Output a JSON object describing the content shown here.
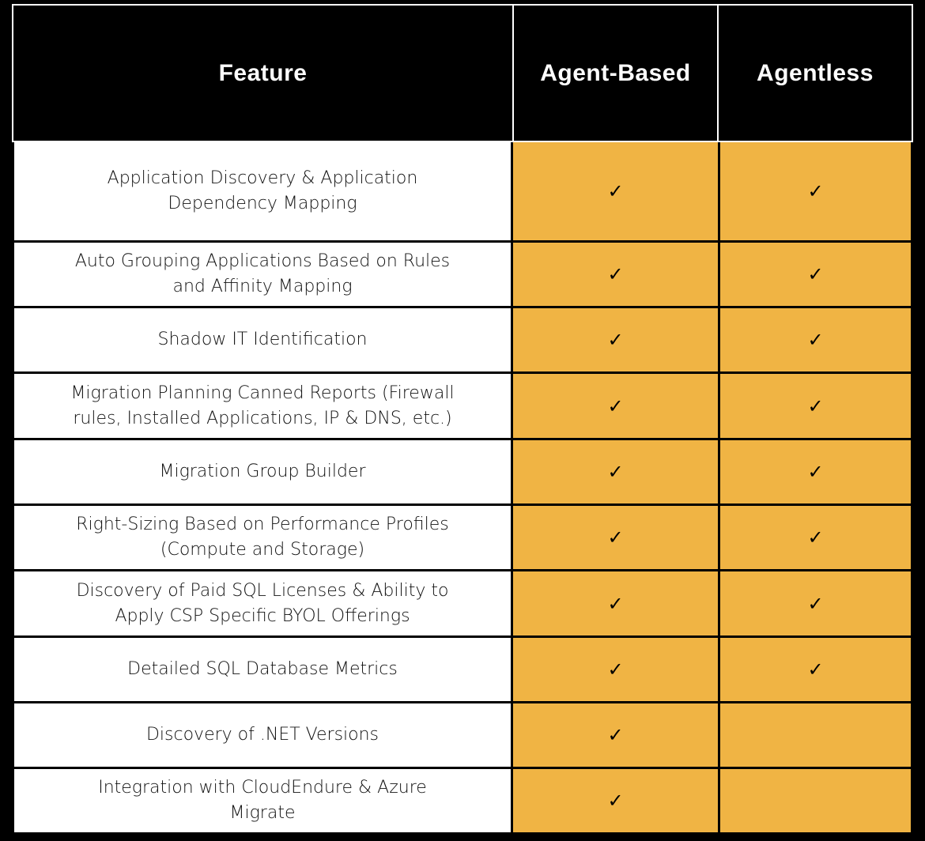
{
  "colors": {
    "accent": "#F0B444",
    "header_bg": "#000000",
    "feature_bg": "#FFFFFF"
  },
  "headers": [
    "Feature",
    "Agent-Based",
    "Agentless"
  ],
  "check_symbol": "✓",
  "rows": [
    {
      "feature": "Application Discovery & Application\nDependency Mapping",
      "agent_based": "✓",
      "agentless": "✓"
    },
    {
      "feature": "Auto Grouping Applications Based on Rules\nand Affinity Mapping",
      "agent_based": "✓",
      "agentless": "✓"
    },
    {
      "feature": "Shadow IT Identification",
      "agent_based": "✓",
      "agentless": "✓"
    },
    {
      "feature": "Migration Planning Canned Reports (Firewall\nrules, Installed Applications, IP & DNS, etc.)",
      "agent_based": "✓",
      "agentless": "✓"
    },
    {
      "feature": "Migration Group Builder",
      "agent_based": "✓",
      "agentless": "✓"
    },
    {
      "feature": "Right-Sizing Based on Performance Profiles\n(Compute and Storage)",
      "agent_based": "✓",
      "agentless": "✓"
    },
    {
      "feature": "Discovery of Paid SQL Licenses & Ability to\nApply CSP Specific BYOL Offerings",
      "agent_based": "✓",
      "agentless": "✓"
    },
    {
      "feature": "Detailed SQL Database Metrics",
      "agent_based": "✓",
      "agentless": "✓"
    },
    {
      "feature": "Discovery of .NET Versions",
      "agent_based": "✓",
      "agentless": ""
    },
    {
      "feature": "Integration with CloudEndure & Azure\nMigrate",
      "agent_based": "✓",
      "agentless": ""
    }
  ]
}
